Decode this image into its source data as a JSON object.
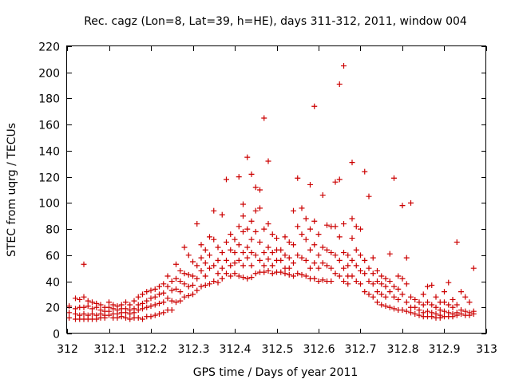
{
  "chart_data": {
    "type": "scatter",
    "title": "Rec. cagz (Lon=8, Lat=39, h=HE), days 311-312, 2011, window 004",
    "xlabel": "GPS time / Days of year 2011",
    "ylabel": "STEC from uqrg / TECUs",
    "xlim": [
      312,
      313
    ],
    "ylim": [
      0,
      220
    ],
    "xticks": [
      312,
      312.1,
      312.2,
      312.3,
      312.4,
      312.5,
      312.6,
      312.7,
      312.8,
      312.9,
      313
    ],
    "xtick_labels": [
      "312",
      "312.1",
      "312.2",
      "312.3",
      "312.4",
      "312.5",
      "312.6",
      "312.7",
      "312.8",
      "312.9",
      "313"
    ],
    "yticks": [
      0,
      20,
      40,
      60,
      80,
      100,
      120,
      140,
      160,
      180,
      200,
      220
    ],
    "ytick_labels": [
      "0",
      "20",
      "40",
      "60",
      "80",
      "100",
      "120",
      "140",
      "160",
      "180",
      "200",
      "220"
    ],
    "grid": false,
    "legend": "none",
    "marker": "plus",
    "color": "#cc0000",
    "points": [
      [
        312.005,
        21
      ],
      [
        312.005,
        16
      ],
      [
        312.005,
        12
      ],
      [
        312.02,
        27
      ],
      [
        312.02,
        19
      ],
      [
        312.02,
        15
      ],
      [
        312.02,
        11
      ],
      [
        312.03,
        26
      ],
      [
        312.03,
        20
      ],
      [
        312.03,
        14
      ],
      [
        312.03,
        11
      ],
      [
        312.04,
        53
      ],
      [
        312.04,
        28
      ],
      [
        312.04,
        20
      ],
      [
        312.04,
        15
      ],
      [
        312.04,
        11
      ],
      [
        312.05,
        25
      ],
      [
        312.05,
        21
      ],
      [
        312.05,
        14
      ],
      [
        312.05,
        11
      ],
      [
        312.06,
        24
      ],
      [
        312.06,
        19
      ],
      [
        312.06,
        15
      ],
      [
        312.06,
        11
      ],
      [
        312.07,
        23
      ],
      [
        312.07,
        20
      ],
      [
        312.07,
        14
      ],
      [
        312.07,
        11
      ],
      [
        312.08,
        22
      ],
      [
        312.08,
        18
      ],
      [
        312.08,
        15
      ],
      [
        312.08,
        12
      ],
      [
        312.09,
        20
      ],
      [
        312.09,
        17
      ],
      [
        312.09,
        14
      ],
      [
        312.09,
        12
      ],
      [
        312.1,
        24
      ],
      [
        312.1,
        20
      ],
      [
        312.1,
        17
      ],
      [
        312.1,
        14
      ],
      [
        312.11,
        22
      ],
      [
        312.11,
        19
      ],
      [
        312.11,
        15
      ],
      [
        312.11,
        12
      ],
      [
        312.12,
        21
      ],
      [
        312.12,
        18
      ],
      [
        312.12,
        15
      ],
      [
        312.12,
        12
      ],
      [
        312.13,
        22
      ],
      [
        312.13,
        19
      ],
      [
        312.13,
        16
      ],
      [
        312.13,
        13
      ],
      [
        312.14,
        24
      ],
      [
        312.14,
        19
      ],
      [
        312.14,
        16
      ],
      [
        312.14,
        12
      ],
      [
        312.15,
        22
      ],
      [
        312.15,
        18
      ],
      [
        312.15,
        15
      ],
      [
        312.15,
        11
      ],
      [
        312.16,
        25
      ],
      [
        312.16,
        19
      ],
      [
        312.16,
        16
      ],
      [
        312.16,
        12
      ],
      [
        312.17,
        28
      ],
      [
        312.17,
        22
      ],
      [
        312.17,
        18
      ],
      [
        312.17,
        12
      ],
      [
        312.18,
        30
      ],
      [
        312.18,
        23
      ],
      [
        312.18,
        19
      ],
      [
        312.18,
        11
      ],
      [
        312.19,
        32
      ],
      [
        312.19,
        25
      ],
      [
        312.19,
        20
      ],
      [
        312.19,
        13
      ],
      [
        312.2,
        33
      ],
      [
        312.2,
        27
      ],
      [
        312.2,
        21
      ],
      [
        312.2,
        13
      ],
      [
        312.21,
        34
      ],
      [
        312.21,
        28
      ],
      [
        312.21,
        22
      ],
      [
        312.21,
        14
      ],
      [
        312.22,
        36
      ],
      [
        312.22,
        30
      ],
      [
        312.22,
        23
      ],
      [
        312.22,
        15
      ],
      [
        312.23,
        38
      ],
      [
        312.23,
        31
      ],
      [
        312.23,
        24
      ],
      [
        312.23,
        16
      ],
      [
        312.24,
        44
      ],
      [
        312.24,
        36
      ],
      [
        312.24,
        27
      ],
      [
        312.24,
        18
      ],
      [
        312.25,
        40
      ],
      [
        312.25,
        33
      ],
      [
        312.25,
        25
      ],
      [
        312.25,
        18
      ],
      [
        312.26,
        53
      ],
      [
        312.26,
        42
      ],
      [
        312.26,
        34
      ],
      [
        312.26,
        24
      ],
      [
        312.27,
        48
      ],
      [
        312.27,
        40
      ],
      [
        312.27,
        32
      ],
      [
        312.27,
        25
      ],
      [
        312.28,
        66
      ],
      [
        312.28,
        46
      ],
      [
        312.28,
        38
      ],
      [
        312.28,
        28
      ],
      [
        312.29,
        60
      ],
      [
        312.29,
        45
      ],
      [
        312.29,
        36
      ],
      [
        312.29,
        29
      ],
      [
        312.3,
        55
      ],
      [
        312.3,
        44
      ],
      [
        312.3,
        37
      ],
      [
        312.3,
        30
      ],
      [
        312.31,
        84
      ],
      [
        312.31,
        52
      ],
      [
        312.31,
        42
      ],
      [
        312.31,
        33
      ],
      [
        312.32,
        68
      ],
      [
        312.32,
        58
      ],
      [
        312.32,
        48
      ],
      [
        312.32,
        36
      ],
      [
        312.33,
        64
      ],
      [
        312.33,
        54
      ],
      [
        312.33,
        44
      ],
      [
        312.33,
        37
      ],
      [
        312.34,
        74
      ],
      [
        312.34,
        60
      ],
      [
        312.34,
        50
      ],
      [
        312.34,
        38
      ],
      [
        312.35,
        94
      ],
      [
        312.35,
        72
      ],
      [
        312.35,
        52
      ],
      [
        312.35,
        40
      ],
      [
        312.36,
        66
      ],
      [
        312.36,
        56
      ],
      [
        312.36,
        46
      ],
      [
        312.36,
        39
      ],
      [
        312.37,
        91
      ],
      [
        312.37,
        62
      ],
      [
        312.37,
        50
      ],
      [
        312.37,
        42
      ],
      [
        312.38,
        118
      ],
      [
        312.38,
        70
      ],
      [
        312.38,
        56
      ],
      [
        312.38,
        46
      ],
      [
        312.39,
        76
      ],
      [
        312.39,
        64
      ],
      [
        312.39,
        52
      ],
      [
        312.39,
        44
      ],
      [
        312.4,
        72
      ],
      [
        312.4,
        62
      ],
      [
        312.4,
        54
      ],
      [
        312.4,
        46
      ],
      [
        312.41,
        120
      ],
      [
        312.41,
        82
      ],
      [
        312.41,
        68
      ],
      [
        312.41,
        56
      ],
      [
        312.41,
        44
      ],
      [
        312.42,
        99
      ],
      [
        312.42,
        90
      ],
      [
        312.42,
        78
      ],
      [
        312.42,
        62
      ],
      [
        312.42,
        52
      ],
      [
        312.42,
        43
      ],
      [
        312.43,
        135
      ],
      [
        312.43,
        80
      ],
      [
        312.43,
        66
      ],
      [
        312.43,
        58
      ],
      [
        312.43,
        42
      ],
      [
        312.44,
        122
      ],
      [
        312.44,
        86
      ],
      [
        312.44,
        72
      ],
      [
        312.44,
        62
      ],
      [
        312.44,
        52
      ],
      [
        312.44,
        43
      ],
      [
        312.45,
        112
      ],
      [
        312.45,
        94
      ],
      [
        312.45,
        78
      ],
      [
        312.45,
        60
      ],
      [
        312.45,
        46
      ],
      [
        312.46,
        110
      ],
      [
        312.46,
        96
      ],
      [
        312.46,
        70
      ],
      [
        312.46,
        56
      ],
      [
        312.46,
        47
      ],
      [
        312.47,
        165
      ],
      [
        312.47,
        80
      ],
      [
        312.47,
        62
      ],
      [
        312.47,
        52
      ],
      [
        312.47,
        47
      ],
      [
        312.48,
        132
      ],
      [
        312.48,
        84
      ],
      [
        312.48,
        66
      ],
      [
        312.48,
        57
      ],
      [
        312.48,
        48
      ],
      [
        312.49,
        76
      ],
      [
        312.49,
        62
      ],
      [
        312.49,
        52
      ],
      [
        312.49,
        46
      ],
      [
        312.5,
        73
      ],
      [
        312.5,
        64
      ],
      [
        312.5,
        56
      ],
      [
        312.5,
        47
      ],
      [
        312.51,
        64
      ],
      [
        312.51,
        56
      ],
      [
        312.51,
        47
      ],
      [
        312.52,
        74
      ],
      [
        312.52,
        60
      ],
      [
        312.52,
        50
      ],
      [
        312.52,
        46
      ],
      [
        312.53,
        70
      ],
      [
        312.53,
        58
      ],
      [
        312.53,
        50
      ],
      [
        312.53,
        45
      ],
      [
        312.54,
        94
      ],
      [
        312.54,
        68
      ],
      [
        312.54,
        54
      ],
      [
        312.54,
        44
      ],
      [
        312.55,
        119
      ],
      [
        312.55,
        82
      ],
      [
        312.55,
        60
      ],
      [
        312.55,
        46
      ],
      [
        312.56,
        96
      ],
      [
        312.56,
        76
      ],
      [
        312.56,
        58
      ],
      [
        312.56,
        45
      ],
      [
        312.57,
        88
      ],
      [
        312.57,
        72
      ],
      [
        312.57,
        56
      ],
      [
        312.57,
        44
      ],
      [
        312.58,
        114
      ],
      [
        312.58,
        80
      ],
      [
        312.58,
        64
      ],
      [
        312.58,
        50
      ],
      [
        312.58,
        42
      ],
      [
        312.59,
        174
      ],
      [
        312.59,
        86
      ],
      [
        312.59,
        68
      ],
      [
        312.59,
        54
      ],
      [
        312.59,
        42
      ],
      [
        312.6,
        76
      ],
      [
        312.6,
        60
      ],
      [
        312.6,
        50
      ],
      [
        312.6,
        40
      ],
      [
        312.61,
        106
      ],
      [
        312.61,
        66
      ],
      [
        312.61,
        54
      ],
      [
        312.61,
        41
      ],
      [
        312.62,
        83
      ],
      [
        312.62,
        64
      ],
      [
        312.62,
        52
      ],
      [
        312.62,
        40
      ],
      [
        312.63,
        82
      ],
      [
        312.63,
        62
      ],
      [
        312.63,
        50
      ],
      [
        312.63,
        40
      ],
      [
        312.64,
        116
      ],
      [
        312.64,
        82
      ],
      [
        312.64,
        60
      ],
      [
        312.64,
        46
      ],
      [
        312.65,
        191
      ],
      [
        312.65,
        118
      ],
      [
        312.65,
        74
      ],
      [
        312.65,
        56
      ],
      [
        312.65,
        44
      ],
      [
        312.66,
        205
      ],
      [
        312.66,
        84
      ],
      [
        312.66,
        62
      ],
      [
        312.66,
        50
      ],
      [
        312.66,
        40
      ],
      [
        312.67,
        60
      ],
      [
        312.67,
        52
      ],
      [
        312.67,
        44
      ],
      [
        312.67,
        38
      ],
      [
        312.68,
        131
      ],
      [
        312.68,
        88
      ],
      [
        312.68,
        73
      ],
      [
        312.68,
        56
      ],
      [
        312.68,
        44
      ],
      [
        312.69,
        82
      ],
      [
        312.69,
        64
      ],
      [
        312.69,
        52
      ],
      [
        312.69,
        40
      ],
      [
        312.7,
        80
      ],
      [
        312.7,
        60
      ],
      [
        312.7,
        48
      ],
      [
        312.7,
        38
      ],
      [
        312.71,
        124
      ],
      [
        312.71,
        56
      ],
      [
        312.71,
        46
      ],
      [
        312.71,
        32
      ],
      [
        312.72,
        105
      ],
      [
        312.72,
        50
      ],
      [
        312.72,
        40
      ],
      [
        312.72,
        30
      ],
      [
        312.73,
        58
      ],
      [
        312.73,
        46
      ],
      [
        312.73,
        38
      ],
      [
        312.73,
        28
      ],
      [
        312.74,
        48
      ],
      [
        312.74,
        40
      ],
      [
        312.74,
        32
      ],
      [
        312.74,
        24
      ],
      [
        312.75,
        44
      ],
      [
        312.75,
        38
      ],
      [
        312.75,
        30
      ],
      [
        312.75,
        22
      ],
      [
        312.76,
        42
      ],
      [
        312.76,
        36
      ],
      [
        312.76,
        28
      ],
      [
        312.76,
        21
      ],
      [
        312.77,
        61
      ],
      [
        312.77,
        40
      ],
      [
        312.77,
        32
      ],
      [
        312.77,
        20
      ],
      [
        312.78,
        119
      ],
      [
        312.78,
        36
      ],
      [
        312.78,
        28
      ],
      [
        312.78,
        19
      ],
      [
        312.79,
        44
      ],
      [
        312.79,
        34
      ],
      [
        312.79,
        26
      ],
      [
        312.79,
        18
      ],
      [
        312.8,
        98
      ],
      [
        312.8,
        42
      ],
      [
        312.8,
        30
      ],
      [
        312.8,
        18
      ],
      [
        312.81,
        58
      ],
      [
        312.81,
        38
      ],
      [
        312.81,
        24
      ],
      [
        312.81,
        17
      ],
      [
        312.82,
        100
      ],
      [
        312.82,
        28
      ],
      [
        312.82,
        20
      ],
      [
        312.82,
        16
      ],
      [
        312.83,
        26
      ],
      [
        312.83,
        20
      ],
      [
        312.83,
        15
      ],
      [
        312.84,
        24
      ],
      [
        312.84,
        18
      ],
      [
        312.84,
        14
      ],
      [
        312.85,
        30
      ],
      [
        312.85,
        22
      ],
      [
        312.85,
        16
      ],
      [
        312.85,
        13
      ],
      [
        312.86,
        36
      ],
      [
        312.86,
        24
      ],
      [
        312.86,
        17
      ],
      [
        312.86,
        13
      ],
      [
        312.87,
        37
      ],
      [
        312.87,
        22
      ],
      [
        312.87,
        16
      ],
      [
        312.87,
        13
      ],
      [
        312.88,
        28
      ],
      [
        312.88,
        20
      ],
      [
        312.88,
        15
      ],
      [
        312.88,
        12
      ],
      [
        312.89,
        24
      ],
      [
        312.89,
        18
      ],
      [
        312.89,
        14
      ],
      [
        312.89,
        12
      ],
      [
        312.9,
        32
      ],
      [
        312.9,
        24
      ],
      [
        312.9,
        17
      ],
      [
        312.9,
        13
      ],
      [
        312.91,
        39
      ],
      [
        312.91,
        22
      ],
      [
        312.91,
        16
      ],
      [
        312.91,
        13
      ],
      [
        312.92,
        26
      ],
      [
        312.92,
        20
      ],
      [
        312.92,
        15
      ],
      [
        312.92,
        13
      ],
      [
        312.93,
        70
      ],
      [
        312.93,
        22
      ],
      [
        312.93,
        16
      ],
      [
        312.93,
        14
      ],
      [
        312.94,
        32
      ],
      [
        312.94,
        18
      ],
      [
        312.94,
        15
      ],
      [
        312.95,
        28
      ],
      [
        312.95,
        17
      ],
      [
        312.95,
        14
      ],
      [
        312.96,
        24
      ],
      [
        312.96,
        16
      ],
      [
        312.96,
        14
      ],
      [
        312.97,
        50
      ],
      [
        312.97,
        17
      ],
      [
        312.97,
        15
      ]
    ]
  }
}
